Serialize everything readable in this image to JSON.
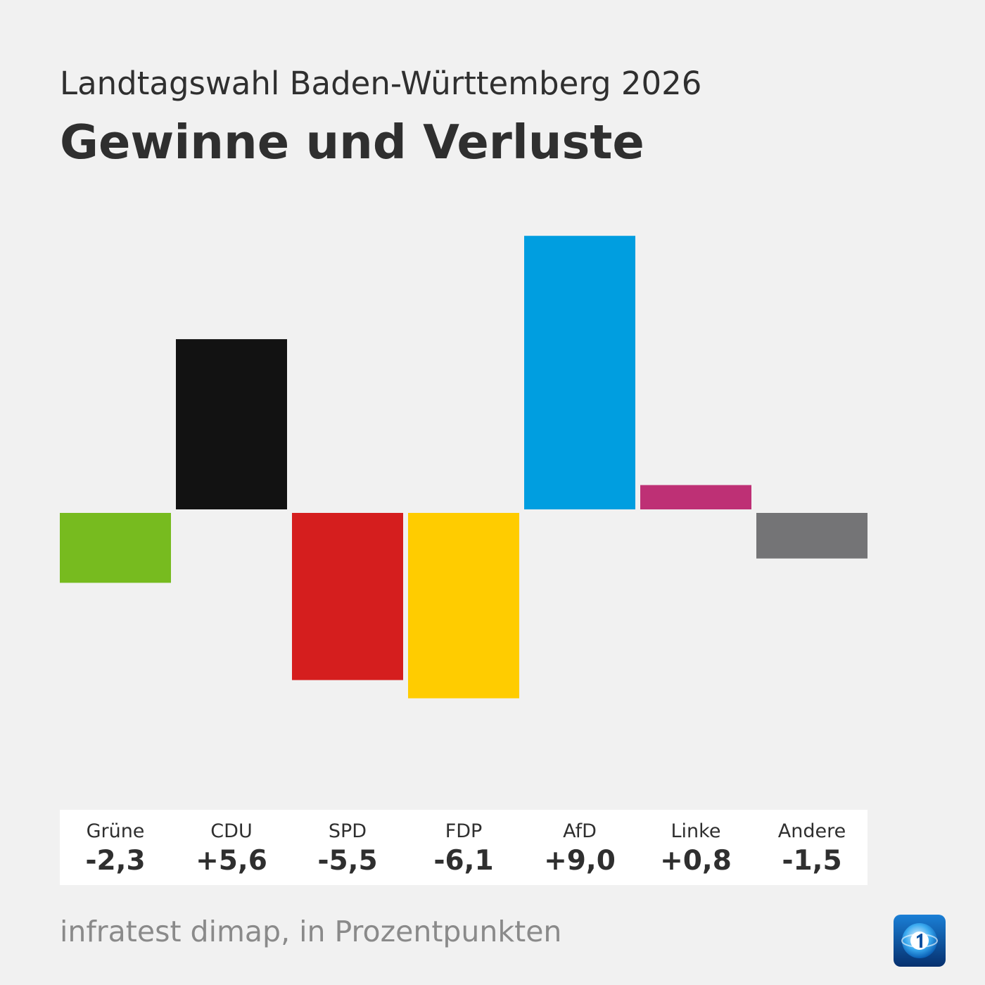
{
  "header": {
    "subtitle": "Landtagswahl Baden-Württemberg 2026",
    "title": "Gewinne und Verluste"
  },
  "chart_data": {
    "type": "bar",
    "title": "Gewinne und Verluste",
    "subtitle": "Landtagswahl Baden-Württemberg 2026",
    "unit": "Prozentpunkte",
    "categories": [
      "Grüne",
      "CDU",
      "SPD",
      "FDP",
      "AfD",
      "Linke",
      "Andere"
    ],
    "values": [
      -2.3,
      5.6,
      -5.5,
      -6.1,
      9.0,
      0.8,
      -1.5
    ],
    "value_labels": [
      "-2,3",
      "+5,6",
      "-5,5",
      "-6,1",
      "+9,0",
      "+0,8",
      "-1,5"
    ],
    "colors": [
      "#77bb1f",
      "#121212",
      "#d51e1e",
      "#ffcc00",
      "#009ee0",
      "#be3075",
      "#747476"
    ],
    "baseline": 0,
    "ylim": [
      -9.0,
      9.0
    ],
    "grid": false,
    "legend": "none"
  },
  "footer": {
    "source": "infratest dimap, in Prozentpunkten",
    "logo_name": "tagesschau-logo"
  }
}
